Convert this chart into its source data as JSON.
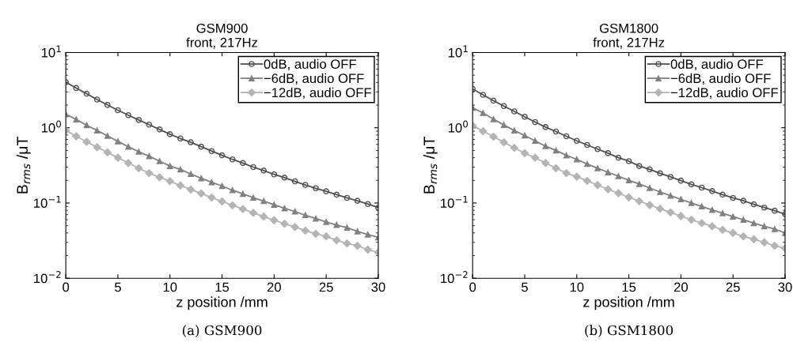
{
  "chart_data": [
    {
      "type": "line",
      "title": "GSM900",
      "subtitle": "front, 217Hz",
      "xlabel": "z position /mm",
      "ylabel": "B$_{rms}$ /μT",
      "log": "y",
      "grid": false,
      "legend": "top right",
      "line_style": "solid",
      "xlim": [
        0,
        30
      ],
      "xticks": [
        0,
        5,
        10,
        15,
        20,
        25,
        30
      ],
      "ylim": [
        0.01,
        10
      ],
      "yticks": [
        {
          "value": 0.01,
          "label": "10$^{−2}$"
        },
        {
          "value": 0.1,
          "label": "10$^{−1}$"
        },
        {
          "value": 1,
          "label": "10$^{0}$"
        },
        {
          "value": 10,
          "label": "10$^{1}$"
        }
      ],
      "x": [
        0,
        1,
        2,
        3,
        4,
        5,
        6,
        7,
        8,
        9,
        10,
        11,
        12,
        13,
        14,
        15,
        16,
        17,
        18,
        19,
        20,
        21,
        22,
        23,
        24,
        25,
        26,
        27,
        28,
        29,
        30
      ],
      "annotations": [
        "(a) GSM900"
      ],
      "series": [
        {
          "name": "0dB, audio OFF",
          "color": "#505050",
          "marker": "circle",
          "values": [
            4.03,
            3.37,
            2.83,
            2.37,
            2.01,
            1.71,
            1.47,
            1.27,
            1.1,
            0.95,
            0.82,
            0.72,
            0.64,
            0.56,
            0.49,
            0.43,
            0.38,
            0.34,
            0.3,
            0.27,
            0.24,
            0.217,
            0.194,
            0.174,
            0.157,
            0.143,
            0.129,
            0.117,
            0.107,
            0.097,
            0.087
          ]
        },
        {
          "name": "−6dB, audio OFF",
          "color": "#808080",
          "marker": "triangle",
          "values": [
            1.51,
            1.29,
            1.08,
            0.92,
            0.78,
            0.66,
            0.56,
            0.48,
            0.42,
            0.36,
            0.31,
            0.28,
            0.243,
            0.213,
            0.189,
            0.168,
            0.148,
            0.132,
            0.118,
            0.106,
            0.095,
            0.085,
            0.077,
            0.069,
            0.062,
            0.056,
            0.051,
            0.047,
            0.042,
            0.038,
            0.035
          ]
        },
        {
          "name": "−12dB, audio OFF",
          "color": "#b4b4b4",
          "marker": "diamond",
          "values": [
            0.92,
            0.77,
            0.65,
            0.55,
            0.47,
            0.4,
            0.34,
            0.29,
            0.25,
            0.22,
            0.195,
            0.171,
            0.151,
            0.134,
            0.118,
            0.105,
            0.093,
            0.083,
            0.074,
            0.066,
            0.059,
            0.053,
            0.048,
            0.043,
            0.039,
            0.036,
            0.032,
            0.029,
            0.027,
            0.024,
            0.022
          ]
        }
      ]
    },
    {
      "type": "line",
      "title": "GSM1800",
      "subtitle": "front, 217Hz",
      "xlabel": "z position /mm",
      "ylabel": "B$_{rms}$ /μT",
      "log": "y",
      "grid": false,
      "legend": "top right",
      "line_style": "solid",
      "xlim": [
        0,
        30
      ],
      "xticks": [
        0,
        5,
        10,
        15,
        20,
        25,
        30
      ],
      "ylim": [
        0.01,
        10
      ],
      "yticks": [
        {
          "value": 0.01,
          "label": "10$^{−2}$"
        },
        {
          "value": 0.1,
          "label": "10$^{−1}$"
        },
        {
          "value": 1,
          "label": "10$^{0}$"
        },
        {
          "value": 10,
          "label": "10$^{1}$"
        }
      ],
      "x": [
        0,
        1,
        2,
        3,
        4,
        5,
        6,
        7,
        8,
        9,
        10,
        11,
        12,
        13,
        14,
        15,
        16,
        17,
        18,
        19,
        20,
        21,
        22,
        23,
        24,
        25,
        26,
        27,
        28,
        29,
        30
      ],
      "annotations": [
        "(b) GSM1800"
      ],
      "series": [
        {
          "name": "0dB, audio OFF",
          "color": "#505050",
          "marker": "circle",
          "values": [
            3.27,
            2.74,
            2.29,
            1.94,
            1.65,
            1.4,
            1.19,
            1.02,
            0.89,
            0.77,
            0.67,
            0.59,
            0.52,
            0.46,
            0.4,
            0.36,
            0.31,
            0.28,
            0.248,
            0.222,
            0.198,
            0.177,
            0.16,
            0.144,
            0.129,
            0.117,
            0.107,
            0.096,
            0.087,
            0.079,
            0.071
          ]
        },
        {
          "name": "−6dB, audio OFF",
          "color": "#808080",
          "marker": "triangle",
          "values": [
            1.84,
            1.57,
            1.3,
            1.09,
            0.92,
            0.79,
            0.67,
            0.57,
            0.5,
            0.43,
            0.38,
            0.33,
            0.29,
            0.256,
            0.227,
            0.201,
            0.179,
            0.158,
            0.14,
            0.125,
            0.112,
            0.1,
            0.09,
            0.081,
            0.073,
            0.066,
            0.06,
            0.054,
            0.049,
            0.045,
            0.04
          ]
        },
        {
          "name": "−12dB, audio OFF",
          "color": "#b4b4b4",
          "marker": "diamond",
          "values": [
            1.07,
            0.9,
            0.76,
            0.64,
            0.54,
            0.46,
            0.4,
            0.34,
            0.29,
            0.25,
            0.224,
            0.197,
            0.173,
            0.152,
            0.135,
            0.119,
            0.106,
            0.094,
            0.084,
            0.075,
            0.067,
            0.06,
            0.054,
            0.049,
            0.044,
            0.04,
            0.036,
            0.033,
            0.03,
            0.027,
            0.025
          ]
        }
      ]
    }
  ]
}
